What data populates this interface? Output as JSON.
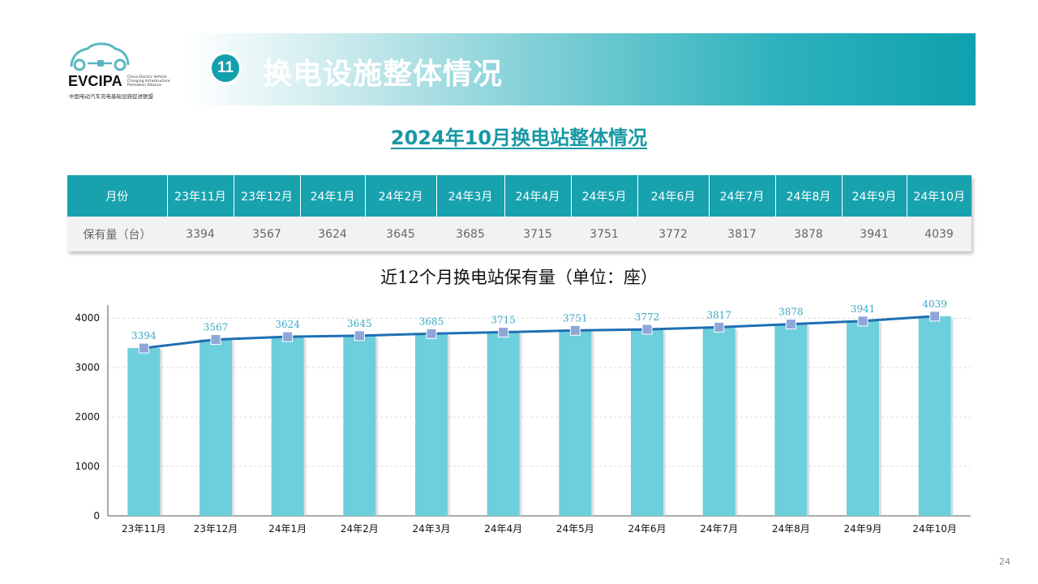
{
  "logo": {
    "brand": "EVCIPA",
    "en_lines": [
      "China Electric Vehicle",
      "Charging Infrastructure",
      "Promotion Alliance"
    ],
    "cn": "中国电动汽车充电基础设施促进联盟"
  },
  "header": {
    "number": "11",
    "title": "换电设施整体情况"
  },
  "subtitle": "2024年10月换电站整体情况",
  "table": {
    "row_header_month": "月份",
    "row_header_count": "保有量（台）",
    "months": [
      "23年11月",
      "23年12月",
      "24年1月",
      "24年2月",
      "24年3月",
      "24年4月",
      "24年5月",
      "24年6月",
      "24年7月",
      "24年8月",
      "24年9月",
      "24年10月"
    ],
    "values": [
      "3394",
      "3567",
      "3624",
      "3645",
      "3685",
      "3715",
      "3751",
      "3772",
      "3817",
      "3878",
      "3941",
      "4039"
    ]
  },
  "chart_data": {
    "type": "bar",
    "title": "近12个月换电站保有量（单位：座）",
    "categories": [
      "23年11月",
      "23年12月",
      "24年1月",
      "24年2月",
      "24年3月",
      "24年4月",
      "24年5月",
      "24年6月",
      "24年7月",
      "24年8月",
      "24年9月",
      "24年10月"
    ],
    "values": [
      3394,
      3567,
      3624,
      3645,
      3685,
      3715,
      3751,
      3772,
      3817,
      3878,
      3941,
      4039
    ],
    "line_overlay": true,
    "ylim": [
      0,
      4200
    ],
    "yticks": [
      0,
      1000,
      2000,
      3000,
      4000
    ],
    "grid": true,
    "bar_color": "#6dcfdc",
    "line_color": "#1f6fb2",
    "marker_color": "#8fa6d8",
    "label_color": "#3aa8c4"
  },
  "page_number": "24"
}
